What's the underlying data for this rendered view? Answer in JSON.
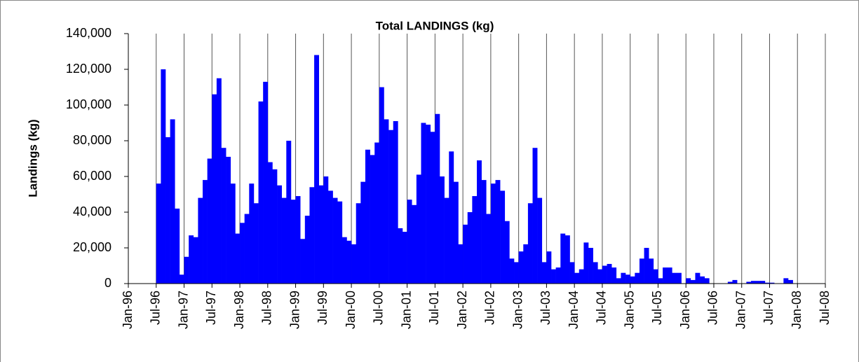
{
  "chart_data": {
    "type": "bar",
    "title": "Total LANDINGS (kg)",
    "y_label": "Landings (kg)",
    "categories": [
      "Jan-96",
      null,
      null,
      null,
      null,
      null,
      "Jul-96",
      null,
      null,
      null,
      null,
      null,
      "Jan-97",
      null,
      null,
      null,
      null,
      null,
      "Jul-97",
      null,
      null,
      null,
      null,
      null,
      "Jan-98",
      null,
      null,
      null,
      null,
      null,
      "Jul-98",
      null,
      null,
      null,
      null,
      null,
      "Jan-99",
      null,
      null,
      null,
      null,
      null,
      "Jul-99",
      null,
      null,
      null,
      null,
      null,
      "Jan-00",
      null,
      null,
      null,
      null,
      null,
      "Jul-00",
      null,
      null,
      null,
      null,
      null,
      "Jan-01",
      null,
      null,
      null,
      null,
      null,
      "Jul-01",
      null,
      null,
      null,
      null,
      null,
      "Jan-02",
      null,
      null,
      null,
      null,
      null,
      "Jul-02",
      null,
      null,
      null,
      null,
      null,
      "Jan-03",
      null,
      null,
      null,
      null,
      null,
      "Jul-03",
      null,
      null,
      null,
      null,
      null,
      "Jan-04",
      null,
      null,
      null,
      null,
      null,
      "Jul-04",
      null,
      null,
      null,
      null,
      null,
      "Jan-05",
      null,
      null,
      null,
      null,
      null,
      "Jul-05",
      null,
      null,
      null,
      null,
      null,
      "Jan-06",
      null,
      null,
      null,
      null,
      null,
      "Jul-06",
      null,
      null,
      null,
      null,
      null,
      "Jan-07",
      null,
      null,
      null,
      null,
      null,
      "Jul-07",
      null,
      null,
      null,
      null,
      null,
      "Jan-08",
      null,
      null,
      null,
      null,
      null,
      "Jul-08"
    ],
    "values": [
      null,
      null,
      null,
      null,
      null,
      null,
      56000,
      120000,
      82000,
      92000,
      42000,
      5000,
      15000,
      27000,
      26000,
      48000,
      58000,
      70000,
      106000,
      115000,
      76000,
      71000,
      56000,
      28000,
      34000,
      39000,
      56000,
      45000,
      102000,
      113000,
      68000,
      64000,
      55000,
      48000,
      80000,
      47000,
      49000,
      25000,
      38000,
      54000,
      128000,
      55000,
      60000,
      52000,
      48000,
      46000,
      26000,
      24000,
      22000,
      45000,
      57000,
      75000,
      72000,
      79000,
      110000,
      92000,
      86000,
      91000,
      31000,
      29000,
      47000,
      44000,
      61000,
      90000,
      89000,
      85000,
      95000,
      60000,
      48000,
      74000,
      57000,
      22000,
      33000,
      40000,
      49000,
      69000,
      58000,
      39000,
      56000,
      58000,
      52000,
      35000,
      14000,
      12000,
      18000,
      22000,
      45000,
      76000,
      48000,
      12000,
      18000,
      8000,
      9000,
      28000,
      27000,
      12000,
      6000,
      8000,
      23000,
      20000,
      12000,
      8000,
      10000,
      11000,
      9000,
      3000,
      6000,
      5000,
      4000,
      6000,
      14000,
      20000,
      14000,
      8000,
      3000,
      9000,
      9000,
      6000,
      6000,
      0,
      3000,
      2000,
      6000,
      4000,
      3000,
      0,
      0,
      0,
      0,
      1000,
      2000,
      0,
      0,
      1000,
      1500,
      1500,
      1500,
      500,
      500,
      0,
      0,
      3000,
      2000,
      0,
      null,
      null,
      null,
      null,
      null,
      null,
      null
    ],
    "color": "#0000ff",
    "ylim": [
      0,
      140000
    ],
    "yticks": [
      0,
      {
        "value": 20000,
        "label": "20,000"
      },
      {
        "value": 40000,
        "label": "40,000"
      },
      {
        "value": 60000,
        "label": "60,000"
      },
      {
        "value": 80000,
        "label": "80,000"
      },
      {
        "value": 100000,
        "label": "100,000"
      },
      {
        "value": 120000,
        "label": "120,000"
      },
      {
        "value": 140000,
        "label": "140,000"
      }
    ],
    "xgrid": true
  }
}
